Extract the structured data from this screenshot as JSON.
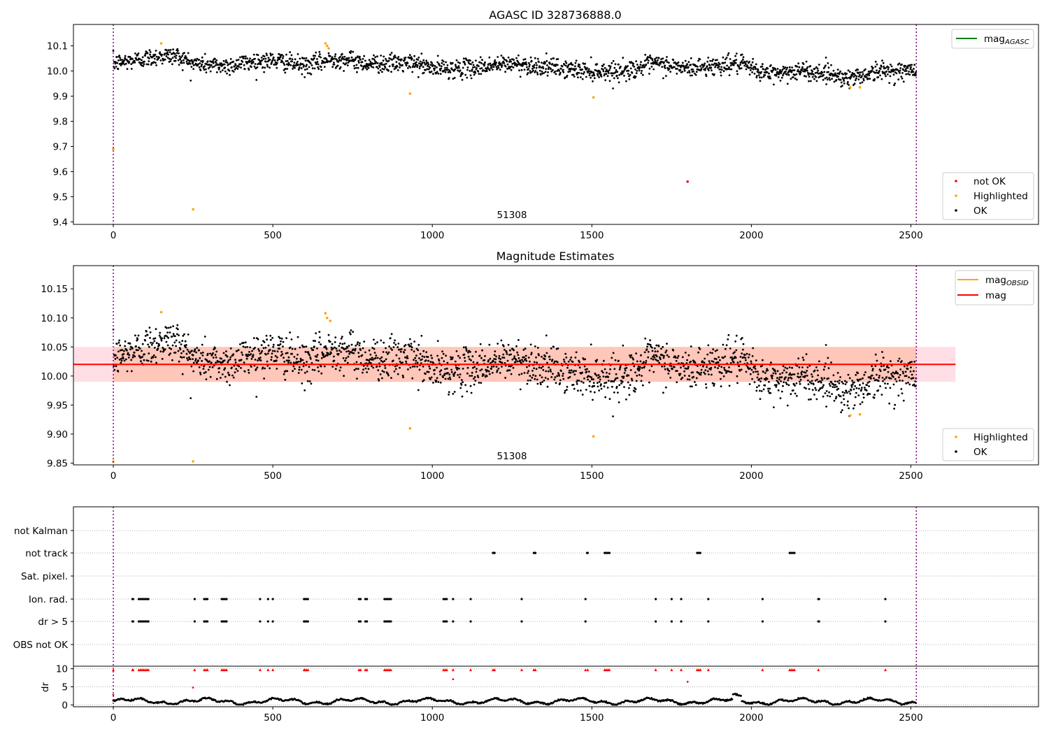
{
  "chart_data": [
    {
      "type": "scatter",
      "title": "AGASC ID 328736888.0",
      "xlim": [
        -125,
        2900
      ],
      "ylim": [
        9.39,
        10.185
      ],
      "xticks": [
        0,
        500,
        1000,
        1500,
        2000,
        2500
      ],
      "yticks": [
        9.4,
        9.5,
        9.6,
        9.7,
        9.8,
        9.9,
        10.0,
        10.1
      ],
      "annotation": "51308",
      "vlines": [
        0,
        2517
      ],
      "legend_lines": [
        {
          "label": "mag",
          "sub": "AGASC",
          "color": "#008000"
        }
      ],
      "legend_points": [
        {
          "label": "not OK",
          "color": "#ff0000"
        },
        {
          "label": "Highlighted",
          "color": "#ffa500"
        },
        {
          "label": "OK",
          "color": "#000000"
        }
      ],
      "series_ok": {
        "name": "OK",
        "color": "#000000",
        "trend": [
          [
            0,
            10.03
          ],
          [
            150,
            10.06
          ],
          [
            200,
            10.06
          ],
          [
            250,
            10.03
          ],
          [
            350,
            10.02
          ],
          [
            450,
            10.04
          ],
          [
            520,
            10.04
          ],
          [
            600,
            10.02
          ],
          [
            700,
            10.05
          ],
          [
            800,
            10.03
          ],
          [
            950,
            10.03
          ],
          [
            1000,
            10.01
          ],
          [
            1100,
            10.01
          ],
          [
            1250,
            10.03
          ],
          [
            1400,
            10.01
          ],
          [
            1500,
            10.0
          ],
          [
            1600,
            10.0
          ],
          [
            1700,
            10.03
          ],
          [
            1800,
            10.01
          ],
          [
            1950,
            10.03
          ],
          [
            2050,
            9.99
          ],
          [
            2150,
            10.0
          ],
          [
            2250,
            9.99
          ],
          [
            2300,
            9.97
          ],
          [
            2400,
            10.0
          ],
          [
            2517,
            10.0
          ]
        ],
        "noise": 0.018
      },
      "highlighted": [
        [
          0,
          9.69
        ],
        [
          150,
          10.11
        ],
        [
          250,
          9.45
        ],
        [
          665,
          10.11
        ],
        [
          670,
          10.1
        ],
        [
          675,
          10.09
        ],
        [
          930,
          9.91
        ],
        [
          1505,
          9.895
        ],
        [
          2310,
          9.935
        ],
        [
          2340,
          9.935
        ]
      ],
      "not_ok": [
        [
          1800,
          9.56
        ]
      ]
    },
    {
      "type": "scatter",
      "title": "Magnitude Estimates",
      "xlim": [
        -125,
        2900
      ],
      "ylim": [
        9.847,
        10.19
      ],
      "xticks": [
        0,
        500,
        1000,
        1500,
        2000,
        2500
      ],
      "yticks": [
        9.85,
        9.9,
        9.95,
        10.0,
        10.05,
        10.1,
        10.15
      ],
      "annotation": "51308",
      "vlines": [
        0,
        2517
      ],
      "mag": 10.02,
      "mag_band": [
        9.99,
        10.05
      ],
      "band_xrange": [
        -125,
        2640
      ],
      "legend_lines": [
        {
          "label": "mag",
          "sub": "OBSID",
          "color": "#ffa500"
        },
        {
          "label": "mag",
          "sub": "",
          "color": "#ff0000"
        }
      ],
      "legend_points": [
        {
          "label": "Highlighted",
          "color": "#ffa500"
        },
        {
          "label": "OK",
          "color": "#000000"
        }
      ],
      "highlighted": [
        [
          0,
          9.853
        ],
        [
          250,
          9.853
        ],
        [
          150,
          10.11
        ],
        [
          665,
          10.108
        ],
        [
          670,
          10.1
        ],
        [
          680,
          10.095
        ],
        [
          930,
          9.91
        ],
        [
          1505,
          9.896
        ],
        [
          2310,
          9.932
        ],
        [
          2340,
          9.934
        ]
      ]
    },
    {
      "type": "flags",
      "xlim": [
        -125,
        2900
      ],
      "categories": [
        "not Kalman",
        "not track",
        "Sat. pixel.",
        "Ion. rad.",
        "dr > 5",
        "OBS not OK"
      ],
      "vlines": [
        0,
        2517
      ],
      "not_track_x": [
        1190,
        1192,
        1195,
        1318,
        1320,
        1323,
        1485,
        1487,
        1540,
        1545,
        1550,
        1555,
        1830,
        1835,
        1840,
        2120,
        2125,
        2130,
        2135
      ],
      "ion_x": [
        60,
        62,
        80,
        85,
        90,
        95,
        100,
        105,
        110,
        255,
        285,
        290,
        295,
        340,
        345,
        350,
        355,
        460,
        485,
        500,
        598,
        600,
        605,
        610,
        770,
        775,
        790,
        795,
        850,
        855,
        860,
        865,
        870,
        1035,
        1040,
        1045,
        1065,
        1120,
        1280,
        1480,
        1700,
        1750,
        1780,
        1865,
        2035,
        2210,
        2212,
        2420
      ],
      "dr_label": "dr",
      "dr_yticks": [
        0,
        5,
        10
      ],
      "dr_ylim": [
        -0.5,
        10.7
      ],
      "dr_red_high": [
        0,
        60,
        62,
        80,
        85,
        90,
        95,
        100,
        105,
        110,
        255,
        285,
        290,
        295,
        340,
        345,
        350,
        355,
        460,
        485,
        500,
        598,
        600,
        605,
        610,
        770,
        775,
        790,
        795,
        850,
        855,
        860,
        865,
        870,
        1035,
        1040,
        1045,
        1065,
        1120,
        1190,
        1195,
        1280,
        1318,
        1323,
        1480,
        1487,
        1540,
        1545,
        1550,
        1555,
        1700,
        1750,
        1780,
        1830,
        1835,
        1840,
        1865,
        2035,
        2120,
        2125,
        2130,
        2135,
        2210,
        2420
      ],
      "dr_red_mid": [
        [
          0,
          2.8
        ],
        [
          250,
          4.8
        ],
        [
          1065,
          7.1
        ],
        [
          1800,
          6.4
        ]
      ]
    }
  ]
}
